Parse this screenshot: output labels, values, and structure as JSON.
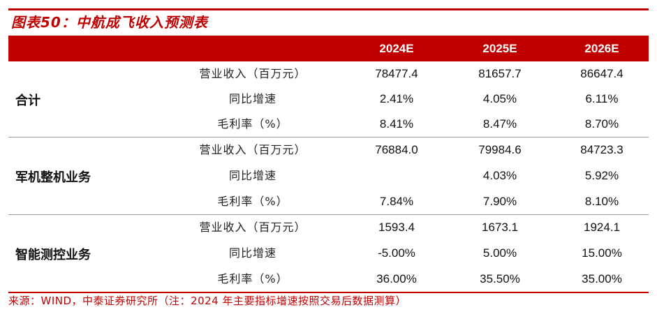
{
  "title": "图表50：中航成飞收入预测表",
  "columns": [
    "2024E",
    "2025E",
    "2026E"
  ],
  "groups": [
    {
      "label": "合计",
      "rows": [
        {
          "metric": "营业收入（百万元）",
          "values": [
            "78477.4",
            "81657.7",
            "86647.4"
          ]
        },
        {
          "metric": "同比增速",
          "values": [
            "2.41%",
            "4.05%",
            "6.11%"
          ]
        },
        {
          "metric": "毛利率（%）",
          "values": [
            "8.41%",
            "8.47%",
            "8.70%"
          ]
        }
      ]
    },
    {
      "label": "军机整机业务",
      "rows": [
        {
          "metric": "营业收入（百万元）",
          "values": [
            "76884.0",
            "79984.6",
            "84723.3"
          ]
        },
        {
          "metric": "同比增速",
          "values": [
            "",
            "4.03%",
            "5.92%"
          ]
        },
        {
          "metric": "毛利率（%）",
          "values": [
            "7.84%",
            "7.90%",
            "8.10%"
          ]
        }
      ]
    },
    {
      "label": "智能测控业务",
      "rows": [
        {
          "metric": "营业收入（百万元）",
          "values": [
            "1593.4",
            "1673.1",
            "1924.1"
          ]
        },
        {
          "metric": "同比增速",
          "values": [
            "-5.00%",
            "5.00%",
            "15.00%"
          ]
        },
        {
          "metric": "毛利率（%）",
          "values": [
            "36.00%",
            "35.50%",
            "35.00%"
          ]
        }
      ]
    }
  ],
  "source": "来源：WIND，中泰证券研究所（注：2024 年主要指标增速按照交易后数据测算）",
  "colors": {
    "accent": "#c00000",
    "header_text": "#ffffff"
  }
}
